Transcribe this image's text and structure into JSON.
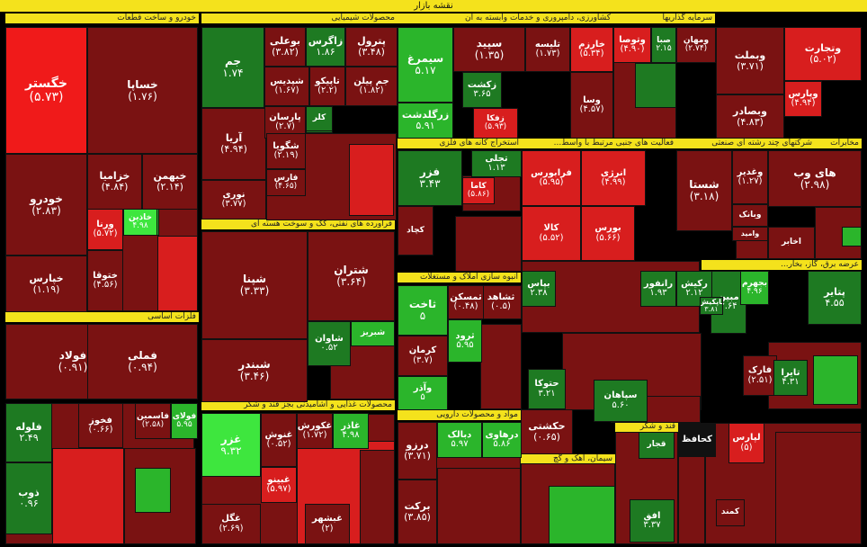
{
  "title": "نقشه بازار",
  "colors": {
    "dark_red": "#7a1212",
    "red": "#d81e1e",
    "bright_red": "#f01a1a",
    "dark_green": "#1e7a22",
    "green": "#2bb52b",
    "bright_green": "#3ee63e",
    "black": "#111111",
    "header": "#f4e21c"
  },
  "chart_data": {
    "type": "treemap",
    "title": "نقشه بازار",
    "sectors": [
      "خودرو و ساخت قطعات",
      "محصولات شیمیایی",
      "کشاورزی، دامپروری و خدمات وابسته به آن",
      "سرمایه گذاریها",
      "فلزات اساسی",
      "فراورده های نفتی، کک و سوخت هسته ای",
      "استخراج کانه های فلزی",
      "فعالیت های جنبی مرتبط با واسط...",
      "شرکتهای چند رشته ای صنعتی",
      "مخابرات",
      "انبوه سازی املاک و مستغلات",
      "محصولات غذایی و آشامیدنی بجز قند و شکر",
      "مواد و محصولات دارویی",
      "سیمان، آهک و گچ",
      "قند و شکر",
      "عرضه برق، گاز، بخار..."
    ],
    "tiles": [
      {
        "name": "خگستر",
        "change": "(۵.۷۳)",
        "color": "bright_red"
      },
      {
        "name": "خساپا",
        "change": "(۱.۷۶)",
        "color": "dark_red"
      },
      {
        "name": "خودرو",
        "change": "(۲.۸۳)",
        "color": "dark_red"
      },
      {
        "name": "خزامیا",
        "change": "(۴.۸۴)",
        "color": "dark_red"
      },
      {
        "name": "خبهمن",
        "change": "(۲.۱۴)",
        "color": "dark_red"
      },
      {
        "name": "خپارس",
        "change": "(۱.۱۹)",
        "color": "dark_red"
      },
      {
        "name": "ورنا",
        "change": "(۵.۷۲)",
        "color": "red"
      },
      {
        "name": "ختوقا",
        "change": "(۴.۵۶)",
        "color": "dark_red"
      },
      {
        "name": "خاذین",
        "change": "۴.۹۸",
        "color": "bright_green"
      },
      {
        "name": "جم",
        "change": "۱.۷۴",
        "color": "dark_green"
      },
      {
        "name": "بوعلی",
        "change": "(۳.۸۲)",
        "color": "dark_red"
      },
      {
        "name": "زاگرس",
        "change": "۱.۸۶",
        "color": "dark_green"
      },
      {
        "name": "پترول",
        "change": "(۳.۴۸)",
        "color": "dark_red"
      },
      {
        "name": "شپدیس",
        "change": "(۱.۶۷)",
        "color": "dark_red"
      },
      {
        "name": "تاپیکو",
        "change": "(۲.۲)",
        "color": "dark_red"
      },
      {
        "name": "جم پیلن",
        "change": "(۱.۸۲)",
        "color": "dark_red"
      },
      {
        "name": "آریا",
        "change": "(۴.۹۴)",
        "color": "dark_red"
      },
      {
        "name": "پارسان",
        "change": "(۲.۷)",
        "color": "dark_red"
      },
      {
        "name": "کلر",
        "change": "",
        "color": "dark_green"
      },
      {
        "name": "شگویا",
        "change": "(۲.۱۹)",
        "color": "dark_red"
      },
      {
        "name": "فارس",
        "change": "(۴.۶۵)",
        "color": "dark_red"
      },
      {
        "name": "نوری",
        "change": "(۳.۷۷)",
        "color": "dark_red"
      },
      {
        "name": "سیمرغ",
        "change": "۵.۱۷",
        "color": "green"
      },
      {
        "name": "زرگلدشت",
        "change": "۵.۹۱",
        "color": "green"
      },
      {
        "name": "سپید",
        "change": "(۱.۳۵)",
        "color": "dark_red"
      },
      {
        "name": "زکشت",
        "change": "۳.۶۵",
        "color": "dark_green"
      },
      {
        "name": "زفکا",
        "change": "(۵.۹۳)",
        "color": "red"
      },
      {
        "name": "تلیسه",
        "change": "(۱.۷۳)",
        "color": "dark_red"
      },
      {
        "name": "خارزم",
        "change": "(۵.۳۴)",
        "color": "red"
      },
      {
        "name": "وتوصا",
        "change": "(۴.۹۰)",
        "color": "red"
      },
      {
        "name": "صبا",
        "change": "۲.۱۵",
        "color": "dark_green"
      },
      {
        "name": "ومهان",
        "change": "(۲.۷۴)",
        "color": "dark_red"
      },
      {
        "name": "وسا",
        "change": "(۴.۵۷)",
        "color": "dark_red"
      },
      {
        "name": "وبملت",
        "change": "(۳.۷۱)",
        "color": "dark_red"
      },
      {
        "name": "وتجارت",
        "change": "(۵.۰۲)",
        "color": "red"
      },
      {
        "name": "وبصادر",
        "change": "(۴.۸۳)",
        "color": "dark_red"
      },
      {
        "name": "وپارس",
        "change": "(۴.۹۴)",
        "color": "red"
      },
      {
        "name": "فولاد",
        "change": "(۰.۹۱)",
        "color": "dark_red"
      },
      {
        "name": "فملی",
        "change": "(۰.۹۴)",
        "color": "dark_red"
      },
      {
        "name": "فلوله",
        "change": "۲.۴۹",
        "color": "dark_green"
      },
      {
        "name": "ذوب",
        "change": "۰.۹۶",
        "color": "dark_green"
      },
      {
        "name": "فخوز",
        "change": "(۰.۶۶)",
        "color": "dark_red"
      },
      {
        "name": "فاسمین",
        "change": "(۲.۵۸)",
        "color": "dark_red"
      },
      {
        "name": "فولای",
        "change": "۵.۹۵",
        "color": "green"
      },
      {
        "name": "شپنا",
        "change": "(۳.۳۳)",
        "color": "dark_red"
      },
      {
        "name": "شتران",
        "change": "(۳.۶۴)",
        "color": "dark_red"
      },
      {
        "name": "شبندر",
        "change": "(۳.۴۶)",
        "color": "dark_red"
      },
      {
        "name": "شاوان",
        "change": "۰.۵۲",
        "color": "dark_green"
      },
      {
        "name": "شبریز",
        "change": "",
        "color": "green"
      },
      {
        "name": "فزر",
        "change": "۳.۴۳",
        "color": "dark_green"
      },
      {
        "name": "کچاد",
        "change": "",
        "color": "dark_red"
      },
      {
        "name": "تجلی",
        "change": "۱.۱۳",
        "color": "dark_green"
      },
      {
        "name": "کاما",
        "change": "(۵.۸۶)",
        "color": "red"
      },
      {
        "name": "فرابورس",
        "change": "(۵.۹۵)",
        "color": "red"
      },
      {
        "name": "انرژی",
        "change": "(۴.۹۹)",
        "color": "red"
      },
      {
        "name": "کالا",
        "change": "(۵.۵۲)",
        "color": "red"
      },
      {
        "name": "بورس",
        "change": "(۵.۶۶)",
        "color": "red"
      },
      {
        "name": "شستا",
        "change": "(۳.۱۸)",
        "color": "dark_red"
      },
      {
        "name": "وغدیر",
        "change": "(۱.۲۷)",
        "color": "dark_red"
      },
      {
        "name": "وبانک",
        "change": "",
        "color": "dark_red"
      },
      {
        "name": "وامید",
        "change": "",
        "color": "dark_red"
      },
      {
        "name": "های وب",
        "change": "(۲.۹۸)",
        "color": "dark_red"
      },
      {
        "name": "اخابر",
        "change": "",
        "color": "dark_red"
      },
      {
        "name": "ثاخت",
        "change": "۵",
        "color": "green"
      },
      {
        "name": "ثشاهد",
        "change": "(۰.۵)",
        "color": "dark_red"
      },
      {
        "name": "ثمسکن",
        "change": "(۰.۴۸)",
        "color": "dark_red"
      },
      {
        "name": "کرمان",
        "change": "(۳.۷)",
        "color": "dark_red"
      },
      {
        "name": "ثرود",
        "change": "۵.۹۵",
        "color": "green"
      },
      {
        "name": "وآذر",
        "change": "۵",
        "color": "green"
      },
      {
        "name": "غزر",
        "change": "۹.۳۲",
        "color": "bright_green"
      },
      {
        "name": "غنوش",
        "change": "(۰.۵۲)",
        "color": "dark_red"
      },
      {
        "name": "غکورش",
        "change": "(۱.۷۲)",
        "color": "dark_red"
      },
      {
        "name": "غاذر",
        "change": "۴.۹۸",
        "color": "green"
      },
      {
        "name": "غبینو",
        "change": "(۵.۹۷)",
        "color": "red"
      },
      {
        "name": "غگل",
        "change": "(۲.۶۹)",
        "color": "dark_red"
      },
      {
        "name": "غبشهر",
        "change": "(۲)",
        "color": "dark_red"
      },
      {
        "name": "درزو",
        "change": "(۳.۷۱)",
        "color": "dark_red"
      },
      {
        "name": "دبالک",
        "change": "۵.۹۷",
        "color": "green"
      },
      {
        "name": "درهاوی",
        "change": "۵.۸۶",
        "color": "green"
      },
      {
        "name": "برکت",
        "change": "(۳.۸۵)",
        "color": "dark_red"
      },
      {
        "name": "حکشتی",
        "change": "(۰.۶۵)",
        "color": "dark_red"
      },
      {
        "name": "حتوکا",
        "change": "۳.۲۱",
        "color": "dark_green"
      },
      {
        "name": "سپاهان",
        "change": "۵.۶۰",
        "color": "dark_green"
      },
      {
        "name": "مبین",
        "change": "۲.۶۴",
        "color": "dark_green"
      },
      {
        "name": "بپاس",
        "change": "۲.۳۸",
        "color": "dark_green"
      },
      {
        "name": "رانفور",
        "change": "۱.۹۳",
        "color": "dark_green"
      },
      {
        "name": "رکیش",
        "change": "۲.۱۲",
        "color": "dark_green"
      },
      {
        "name": "تاپکیش",
        "change": "۳.۸۱",
        "color": "dark_green"
      },
      {
        "name": "پتایر",
        "change": "۴.۵۵",
        "color": "dark_green"
      },
      {
        "name": "بجهرم",
        "change": "۴.۹۶",
        "color": "green"
      },
      {
        "name": "فارک",
        "change": "(۲.۵۱)",
        "color": "dark_red"
      },
      {
        "name": "تایرا",
        "change": "۴.۳۱",
        "color": "dark_green"
      },
      {
        "name": "کحافظ",
        "change": "",
        "color": "black"
      },
      {
        "name": "لپارس",
        "change": "(۵)",
        "color": "red"
      },
      {
        "name": "افق",
        "change": "۳.۳۷",
        "color": "dark_green"
      },
      {
        "name": "قجار",
        "change": "",
        "color": "dark_green"
      },
      {
        "name": "کمند",
        "change": "",
        "color": "dark_red"
      }
    ]
  }
}
